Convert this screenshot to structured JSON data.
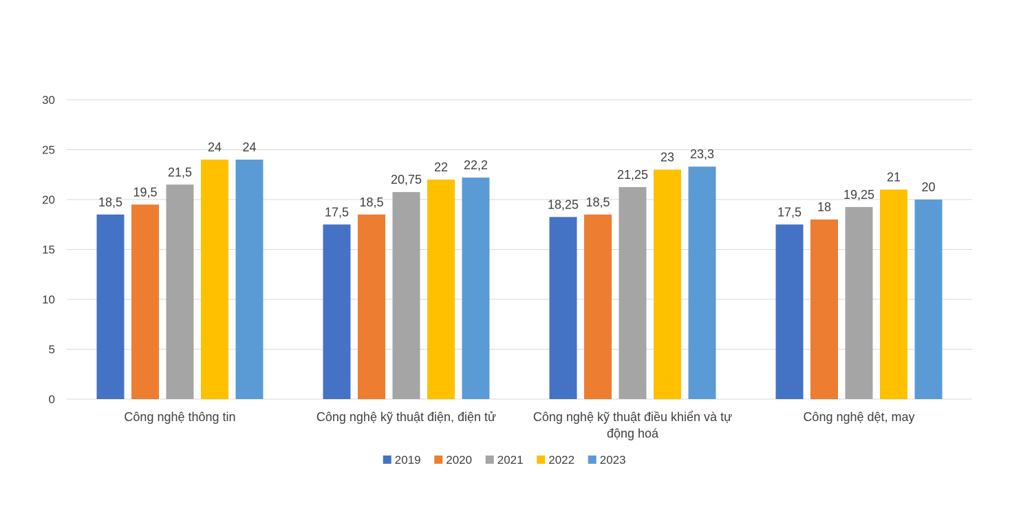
{
  "chart_data": {
    "type": "bar",
    "title": "",
    "xlabel": "",
    "ylabel": "",
    "ylim": [
      0,
      30
    ],
    "yticks": [
      0,
      5,
      10,
      15,
      20,
      25,
      30
    ],
    "grid": true,
    "legend_position": "bottom",
    "categories": [
      [
        "Công nghệ thông tin"
      ],
      [
        "Công nghệ kỹ thuật điện, điện tử"
      ],
      [
        "Công nghệ kỹ thuật điều khiển và tự",
        "động hoá"
      ],
      [
        "Công nghệ dệt, may"
      ]
    ],
    "series": [
      {
        "name": "2019",
        "color": "#4472C4",
        "values": [
          18.5,
          17.5,
          18.25,
          17.5
        ],
        "labels": [
          "18,5",
          "17,5",
          "18,25",
          "17,5"
        ]
      },
      {
        "name": "2020",
        "color": "#ED7D31",
        "values": [
          19.5,
          18.5,
          18.5,
          18
        ],
        "labels": [
          "19,5",
          "18,5",
          "18,5",
          "18"
        ]
      },
      {
        "name": "2021",
        "color": "#A5A5A5",
        "values": [
          21.5,
          20.75,
          21.25,
          19.25
        ],
        "labels": [
          "21,5",
          "20,75",
          "21,25",
          "19,25"
        ]
      },
      {
        "name": "2022",
        "color": "#FFC000",
        "values": [
          24,
          22,
          23,
          21
        ],
        "labels": [
          "24",
          "22",
          "23",
          "21"
        ]
      },
      {
        "name": "2023",
        "color": "#5B9BD5",
        "values": [
          24,
          22.2,
          23.3,
          20
        ],
        "labels": [
          "24",
          "22,2",
          "23,3",
          "20"
        ]
      }
    ]
  }
}
